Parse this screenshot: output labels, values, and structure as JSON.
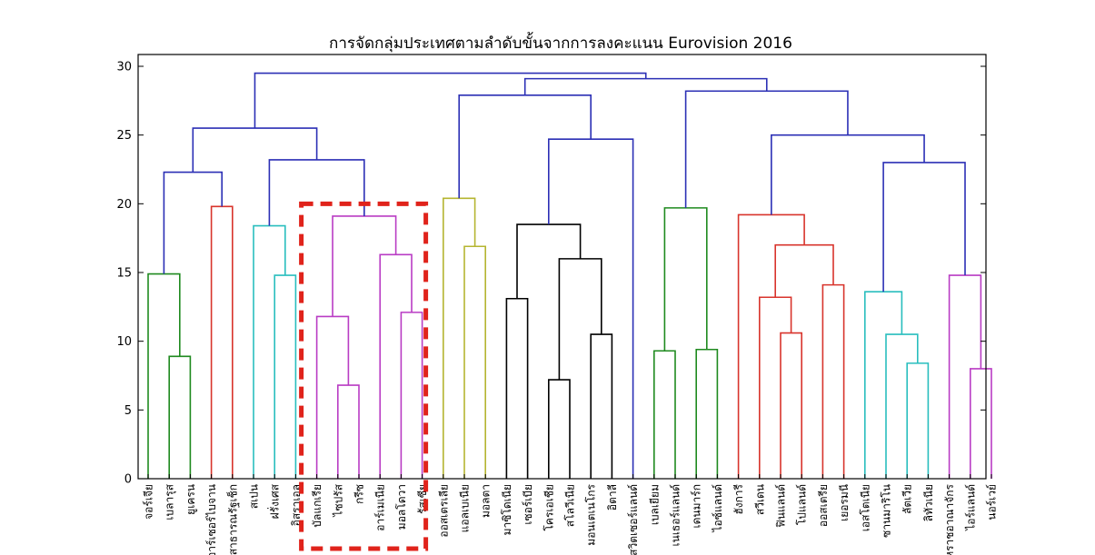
{
  "chart_data": {
    "type": "dendrogram",
    "title": "การจัดกลุ่มประเทศตามลำดับขั้นจากการลงคะแนน Eurovision 2016",
    "ylim": [
      0,
      31
    ],
    "yticks": [
      0,
      5,
      10,
      15,
      20,
      25,
      30
    ],
    "leaves": [
      "จอร์เจีย",
      "เบลารุส",
      "ยูเครน",
      "อาร์เซอร์ไบจาน",
      "สาธารณรัฐเช็ก",
      "สเปน",
      "ฝรั่งเศส",
      "อิสราเอล",
      "บัลแกเรีย",
      "ไซปรัส",
      "กรีซ",
      "อาร์เมเนีย",
      "มอลโดวา",
      "รัสเซีย",
      "ออสเตรเลีย",
      "แอลเบเนีย",
      "มอลตา",
      "มาซิโดเนีย",
      "เซอร์เบีย",
      "โครเอเชีย",
      "สโลวีเนีย",
      "มอนเตเนโกร",
      "อิตาลี",
      "สวิตเซอร์แลนด์",
      "เบลเยียม",
      "เนเธอร์แลนด์",
      "เดนมาร์ก",
      "ไอซ์แลนด์",
      "ฮังการี",
      "สวีเดน",
      "ฟินแลนด์",
      "โปแลนด์",
      "ออสเตรีย",
      "เยอรมนี",
      "เอสโตเนีย",
      "ซานมาริโน",
      "ลัตเวีย",
      "ลิทัวเนีย",
      "สหราชอาณาจักร",
      "ไอร์แลนด์",
      "นอร์เวย์"
    ],
    "merges": [
      {
        "left": "L1",
        "right": "L2",
        "height": 8.9,
        "color": "#1f8a1f"
      },
      {
        "left": "L0",
        "right": "M0",
        "height": 14.9,
        "color": "#1f8a1f"
      },
      {
        "left": "L3",
        "right": "L4",
        "height": 19.8,
        "color": "#d8342c"
      },
      {
        "left": "M1",
        "right": "M2",
        "height": 22.3,
        "color": "#2b2fb5"
      },
      {
        "left": "L6",
        "right": "L7",
        "height": 14.8,
        "color": "#29bebe"
      },
      {
        "left": "L5",
        "right": "M4",
        "height": 18.4,
        "color": "#29bebe"
      },
      {
        "left": "L9",
        "right": "L10",
        "height": 6.8,
        "color": "#b93cc4"
      },
      {
        "left": "L8",
        "right": "M6",
        "height": 11.8,
        "color": "#b93cc4"
      },
      {
        "left": "L12",
        "right": "L13",
        "height": 12.1,
        "color": "#b93cc4"
      },
      {
        "left": "L11",
        "right": "M8",
        "height": 16.3,
        "color": "#b93cc4"
      },
      {
        "left": "M7",
        "right": "M9",
        "height": 19.1,
        "color": "#b93cc4"
      },
      {
        "left": "M5",
        "right": "M10",
        "height": 23.2,
        "color": "#2b2fb5"
      },
      {
        "left": "M3",
        "right": "M11",
        "height": 25.5,
        "color": "#2b2fb5"
      },
      {
        "left": "L15",
        "right": "L16",
        "height": 16.9,
        "color": "#b5b531"
      },
      {
        "left": "L14",
        "right": "M13",
        "height": 20.4,
        "color": "#b5b531"
      },
      {
        "left": "L17",
        "right": "L18",
        "height": 13.1,
        "color": "#000000"
      },
      {
        "left": "L19",
        "right": "L20",
        "height": 7.2,
        "color": "#000000"
      },
      {
        "left": "L21",
        "right": "L22",
        "height": 10.5,
        "color": "#000000"
      },
      {
        "left": "M16",
        "right": "M17",
        "height": 16.0,
        "color": "#000000"
      },
      {
        "left": "M15",
        "right": "M18",
        "height": 18.5,
        "color": "#000000"
      },
      {
        "left": "M19",
        "right": "L23",
        "height": 24.7,
        "color": "#2b2fb5"
      },
      {
        "left": "M14",
        "right": "M20",
        "height": 27.9,
        "color": "#2b2fb5"
      },
      {
        "left": "L24",
        "right": "L25",
        "height": 9.3,
        "color": "#1f8a1f"
      },
      {
        "left": "L26",
        "right": "L27",
        "height": 9.4,
        "color": "#1f8a1f"
      },
      {
        "left": "M22",
        "right": "M23",
        "height": 19.7,
        "color": "#1f8a1f"
      },
      {
        "left": "L30",
        "right": "L31",
        "height": 10.6,
        "color": "#d8342c"
      },
      {
        "left": "L29",
        "right": "M25",
        "height": 13.2,
        "color": "#d8342c"
      },
      {
        "left": "L32",
        "right": "L33",
        "height": 14.1,
        "color": "#d8342c"
      },
      {
        "left": "M26",
        "right": "M27",
        "height": 17.0,
        "color": "#d8342c"
      },
      {
        "left": "L28",
        "right": "M28",
        "height": 19.2,
        "color": "#d8342c"
      },
      {
        "left": "L36",
        "right": "L37",
        "height": 8.4,
        "color": "#29bebe"
      },
      {
        "left": "L35",
        "right": "M30",
        "height": 10.5,
        "color": "#29bebe"
      },
      {
        "left": "L34",
        "right": "M31",
        "height": 13.6,
        "color": "#29bebe"
      },
      {
        "left": "L39",
        "right": "L40",
        "height": 8.0,
        "color": "#b93cc4"
      },
      {
        "left": "L38",
        "right": "M33",
        "height": 14.8,
        "color": "#b93cc4"
      },
      {
        "left": "M32",
        "right": "M34",
        "height": 23.0,
        "color": "#2b2fb5"
      },
      {
        "left": "M29",
        "right": "M35",
        "height": 25.0,
        "color": "#2b2fb5"
      },
      {
        "left": "M24",
        "right": "M36",
        "height": 28.2,
        "color": "#2b2fb5"
      },
      {
        "left": "M21",
        "right": "M37",
        "height": 29.1,
        "color": "#2b2fb5"
      },
      {
        "left": "M12",
        "right": "M38",
        "height": 29.5,
        "color": "#2b2fb5"
      }
    ],
    "highlight": {
      "leaves": [
        "บัลแกเรีย",
        "ไซปรัส",
        "กรีซ",
        "อาร์เมเนีย",
        "มอลโดวา",
        "รัสเซีย"
      ],
      "top": 20,
      "color": "#e0231b",
      "style": "dashed"
    },
    "grid": false
  }
}
